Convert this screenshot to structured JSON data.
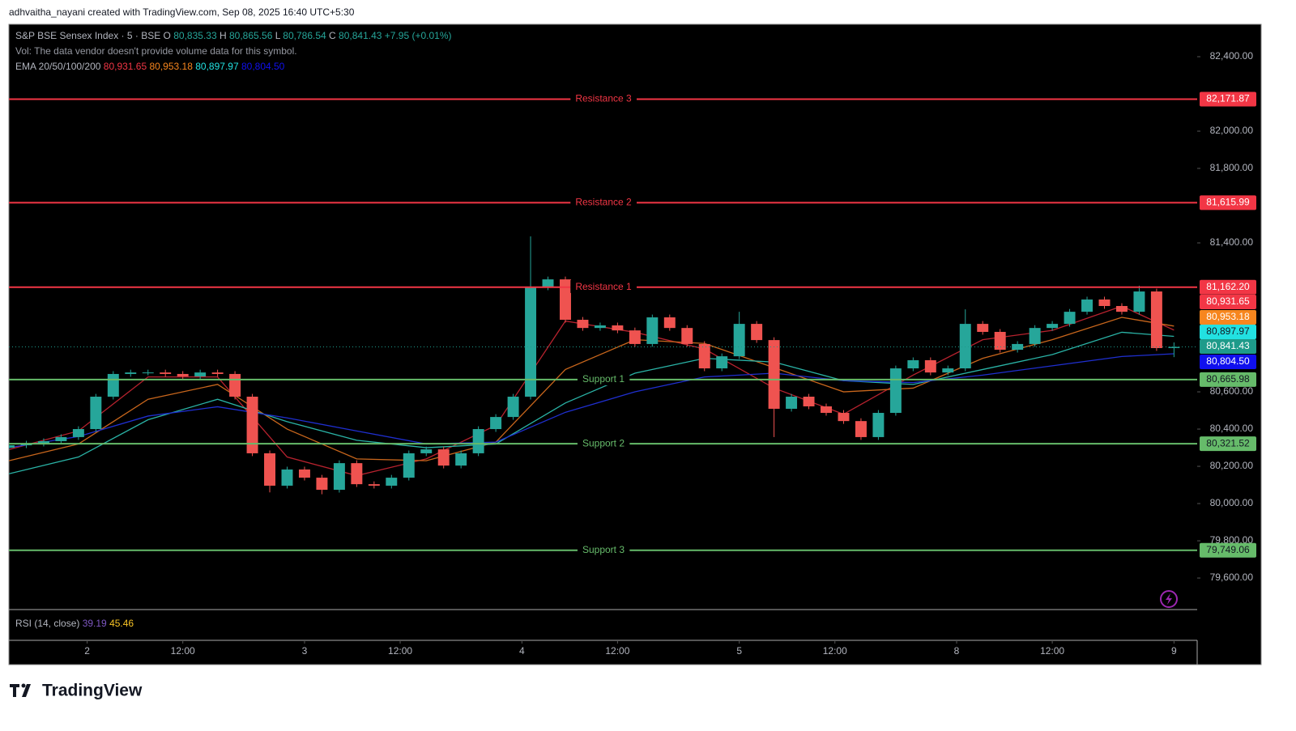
{
  "credit": "adhvaitha_nayani created with TradingView.com, Sep 08, 2025 16:40 UTC+5:30",
  "logo": "TradingView",
  "chart_data": {
    "type": "candlestick",
    "header": {
      "symbol": "S&P BSE Sensex Index · 5 · BSE",
      "ohlc": [
        {
          "letter": "O",
          "label": "80,835.33"
        },
        {
          "letter": "H",
          "label": "80,865.56"
        },
        {
          "letter": "L",
          "label": "80,786.54"
        },
        {
          "letter": "C",
          "label": "80,841.43"
        }
      ],
      "change": "+7.95 (+0.01%)",
      "volume_note": "Vol: The data vendor doesn't provide volume data for this symbol.",
      "ema_legend": "EMA 20/50/100/200"
    },
    "rsi": {
      "name": "RSI (14, close)",
      "values": [
        {
          "value": 39.19,
          "label": "39.19",
          "color": "#7e57c2"
        },
        {
          "value": 45.46,
          "label": "45.46",
          "color": "#f7c325"
        }
      ]
    },
    "xlim": [
      0,
      410
    ],
    "xticks": [
      {
        "value": 27,
        "label": "2"
      },
      {
        "value": 60,
        "label": "12:00"
      },
      {
        "value": 102,
        "label": "3"
      },
      {
        "value": 135,
        "label": "12:00"
      },
      {
        "value": 177,
        "label": "4"
      },
      {
        "value": 210,
        "label": "12:00"
      },
      {
        "value": 252,
        "label": "5"
      },
      {
        "value": 285,
        "label": "12:00"
      },
      {
        "value": 327,
        "label": "8"
      },
      {
        "value": 360,
        "label": "12:00"
      },
      {
        "value": 402,
        "label": "9"
      }
    ],
    "ylim": [
      79435,
      82574
    ],
    "yticks": [
      {
        "value": 79600,
        "label": "79,600.00"
      },
      {
        "value": 79800,
        "label": "79,800.00"
      },
      {
        "value": 80000,
        "label": "80,000.00"
      },
      {
        "value": 80200,
        "label": "80,200.00"
      },
      {
        "value": 80400,
        "label": "80,400.00"
      },
      {
        "value": 80600,
        "label": "80,600.00"
      },
      {
        "value": 81400,
        "label": "81,400.00"
      },
      {
        "value": 81800,
        "label": "81,800.00"
      },
      {
        "value": 82000,
        "label": "82,000.00"
      },
      {
        "value": 82400,
        "label": "82,400.00"
      }
    ],
    "up_color": "#26a69a",
    "down_color": "#ef5350",
    "candles": {
      "x": [
        0,
        6,
        12,
        18,
        24,
        30,
        36,
        42,
        48,
        54,
        60,
        66,
        72,
        78,
        84,
        90,
        96,
        102,
        108,
        114,
        120,
        126,
        132,
        138,
        144,
        150,
        156,
        162,
        168,
        174,
        180,
        186,
        192,
        198,
        204,
        210,
        216,
        222,
        228,
        234,
        240,
        246,
        252,
        258,
        264,
        270,
        276,
        282,
        288,
        294,
        300,
        306,
        312,
        318,
        324,
        330,
        336,
        342,
        348,
        354,
        360,
        366,
        372,
        378,
        384,
        390,
        396,
        402
      ],
      "open": [
        80300,
        80313,
        80322,
        80335,
        80357,
        80400,
        80574,
        80696,
        80704,
        80704,
        80696,
        80683,
        80704,
        80696,
        80574,
        80270,
        80096,
        80183,
        80139,
        80074,
        80217,
        80104,
        80096,
        80139,
        80270,
        80291,
        80204,
        80270,
        80400,
        80465,
        80574,
        81161,
        81204,
        80987,
        80943,
        80957,
        80930,
        80857,
        81000,
        80943,
        80857,
        80726,
        80791,
        80965,
        80878,
        80509,
        80574,
        80522,
        80487,
        80443,
        80357,
        80487,
        80726,
        80770,
        80704,
        80726,
        80965,
        80922,
        80826,
        80857,
        80943,
        80965,
        81030,
        81096,
        81061,
        81030,
        81139,
        80835.33
      ],
      "high": [
        80328,
        80337,
        80350,
        80372,
        80415,
        80589,
        80711,
        80719,
        80719,
        80719,
        80711,
        80719,
        80719,
        80711,
        80589,
        80285,
        80198,
        80198,
        80154,
        80232,
        80232,
        80119,
        80154,
        80285,
        80306,
        80306,
        80285,
        80415,
        80480,
        80589,
        81435,
        81219,
        81219,
        81002,
        80972,
        80972,
        80945,
        81015,
        81015,
        80958,
        80872,
        80806,
        81030,
        80980,
        80893,
        80589,
        80589,
        80537,
        80502,
        80458,
        80502,
        80741,
        80785,
        80785,
        80741,
        81043,
        80980,
        80937,
        80872,
        80958,
        80980,
        81045,
        81111,
        81111,
        81076,
        81170,
        81154,
        80865.56
      ],
      "low": [
        80285,
        80298,
        80307,
        80320,
        80342,
        80385,
        80559,
        80681,
        80689,
        80681,
        80668,
        80668,
        80681,
        80559,
        80255,
        80060,
        80081,
        80124,
        80050,
        80059,
        80089,
        80081,
        80081,
        80124,
        80255,
        80189,
        80189,
        80255,
        80385,
        80450,
        80559,
        81146,
        80972,
        80928,
        80928,
        80915,
        80842,
        80842,
        80928,
        80842,
        80711,
        80711,
        80776,
        80863,
        80357,
        80494,
        80507,
        80472,
        80428,
        80342,
        80342,
        80472,
        80711,
        80689,
        80689,
        80711,
        80907,
        80811,
        80811,
        80842,
        80928,
        80950,
        81015,
        81046,
        81015,
        81015,
        80820,
        80786.54
      ],
      "close": [
        80313,
        80322,
        80335,
        80357,
        80400,
        80574,
        80696,
        80704,
        80704,
        80696,
        80683,
        80704,
        80696,
        80574,
        80270,
        80096,
        80183,
        80139,
        80074,
        80217,
        80104,
        80096,
        80139,
        80270,
        80291,
        80204,
        80270,
        80400,
        80465,
        80574,
        81161,
        81204,
        80987,
        80943,
        80957,
        80930,
        80857,
        81000,
        80943,
        80857,
        80726,
        80791,
        80965,
        80878,
        80509,
        80574,
        80522,
        80487,
        80443,
        80357,
        80487,
        80726,
        80770,
        80704,
        80726,
        80965,
        80922,
        80826,
        80857,
        80943,
        80965,
        81030,
        81096,
        81061,
        81030,
        81139,
        80835,
        80841.43
      ]
    },
    "ema_x": [
      0,
      24,
      48,
      72,
      96,
      120,
      144,
      168,
      192,
      216,
      240,
      264,
      288,
      312,
      336,
      360,
      384,
      402
    ],
    "series": [
      {
        "name": "EMA 20",
        "color": "#b7222e",
        "badge": "#f23645",
        "text": "#ffffff",
        "last_label": "80,931.65",
        "values": [
          80290,
          80390,
          80680,
          80680,
          80250,
          80150,
          80240,
          80420,
          80980,
          80920,
          80830,
          80620,
          80480,
          80690,
          80880,
          80930,
          81060,
          80931.65
        ]
      },
      {
        "name": "EMA 50",
        "color": "#c8661c",
        "badge": "#f7861e",
        "text": "#ffffff",
        "last_label": "80,953.18",
        "values": [
          80230,
          80320,
          80560,
          80640,
          80400,
          80240,
          80230,
          80330,
          80720,
          80880,
          80860,
          80730,
          80600,
          80620,
          80780,
          80880,
          81000,
          80953.18
        ]
      },
      {
        "name": "EMA 100",
        "color": "#2ab3a6",
        "badge": "#22e1e1",
        "text": "#131722",
        "last_label": "80,897.97",
        "values": [
          80160,
          80250,
          80450,
          80560,
          80440,
          80340,
          80300,
          80320,
          80540,
          80700,
          80780,
          80760,
          80660,
          80640,
          80720,
          80800,
          80920,
          80897.97
        ]
      },
      {
        "name": "EMA 200",
        "color": "#1f2fd0",
        "badge": "#1010ee",
        "text": "#ffffff",
        "last_label": "80,804.50",
        "values": [
          80300,
          80360,
          80470,
          80520,
          80460,
          80390,
          80320,
          80330,
          80490,
          80600,
          80680,
          80700,
          80660,
          80650,
          80690,
          80740,
          80790,
          80804.5
        ]
      }
    ],
    "last_price": {
      "value": 80841.43,
      "label": "80,841.43",
      "color": "#1e9b8a"
    },
    "levels": [
      {
        "name": "Resistance 3",
        "value": 82171.87,
        "label": "82,171.87",
        "color": "#f23645"
      },
      {
        "name": "Resistance 2",
        "value": 81615.99,
        "label": "81,615.99",
        "color": "#f23645"
      },
      {
        "name": "Resistance 1",
        "value": 81162.2,
        "label": "81,162.20",
        "color": "#f23645"
      },
      {
        "name": "Support 1",
        "value": 80665.98,
        "label": "80,665.98",
        "color": "#66bb6a"
      },
      {
        "name": "Support 2",
        "value": 80321.52,
        "label": "80,321.52",
        "color": "#66bb6a"
      },
      {
        "name": "Support 3",
        "value": 79749.06,
        "label": "79,749.06",
        "color": "#66bb6a"
      }
    ]
  }
}
